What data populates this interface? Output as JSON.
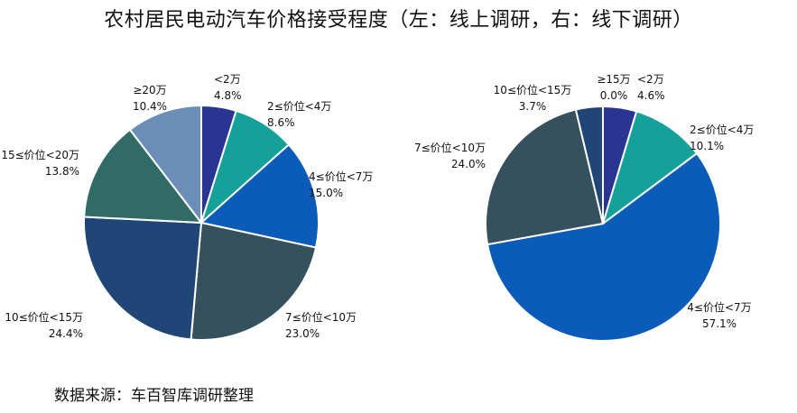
{
  "title": "农村居民电动汽车价格接受程度（左：线上调研，右：线下调研）",
  "source": "数据来源：车百智库调研整理",
  "chart_data": [
    {
      "type": "pie",
      "categories": [
        "<2万",
        "2≤价位<4万",
        "4≤价位<7万",
        "7≤价位<10万",
        "10≤价位<15万",
        "15≤价位<20万",
        "≥20万"
      ],
      "values": [
        4.8,
        8.6,
        15.0,
        23.0,
        24.4,
        13.8,
        10.4
      ],
      "value_labels": [
        "4.8%",
        "8.6%",
        "15.0%",
        "23.0%",
        "24.4%",
        "13.8%",
        "10.4%"
      ],
      "colors": [
        "#283593",
        "#15a09a",
        "#0a5cb8",
        "#34515d",
        "#1f4677",
        "#306b66",
        "#6b8db8"
      ],
      "legend": "none"
    },
    {
      "type": "pie",
      "categories": [
        "<2万",
        "2≤价位<4万",
        "4≤价位<7万",
        "7≤价位<10万",
        "10≤价位<15万",
        "≥15万"
      ],
      "values": [
        4.6,
        10.1,
        57.1,
        24.0,
        3.7,
        0.0
      ],
      "value_labels": [
        "4.6%",
        "10.1%",
        "57.1%",
        "24.0%",
        "3.7%",
        "0.0%"
      ],
      "colors": [
        "#283593",
        "#15a09a",
        "#0a5cb8",
        "#34515d",
        "#1f4677",
        "#6b8db8"
      ],
      "legend": "none"
    }
  ]
}
